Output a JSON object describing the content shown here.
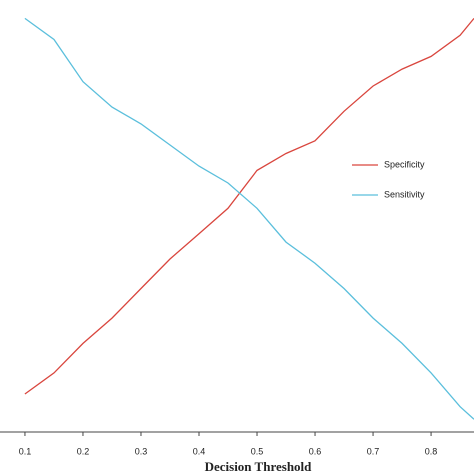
{
  "chart_data": {
    "type": "line",
    "x_label": "Decision Threshold",
    "x": [
      0.1,
      0.15,
      0.2,
      0.25,
      0.3,
      0.35,
      0.4,
      0.45,
      0.5,
      0.55,
      0.6,
      0.65,
      0.7,
      0.75,
      0.8,
      0.85,
      0.874
    ],
    "series": [
      {
        "name": "Specificity",
        "color": "#d9463e",
        "values": [
          0.09,
          0.14,
          0.21,
          0.27,
          0.34,
          0.41,
          0.47,
          0.53,
          0.62,
          0.66,
          0.69,
          0.76,
          0.82,
          0.86,
          0.89,
          0.94,
          0.98
        ]
      },
      {
        "name": "Sensitivity",
        "color": "#5bbfdc",
        "values": [
          0.98,
          0.93,
          0.83,
          0.77,
          0.73,
          0.68,
          0.63,
          0.59,
          0.53,
          0.45,
          0.4,
          0.34,
          0.27,
          0.21,
          0.14,
          0.06,
          0.03
        ]
      }
    ],
    "xlim": [
      0.057,
      0.874
    ],
    "ylim": [
      0,
      1
    ],
    "xticks": [
      0.1,
      0.2,
      0.3,
      0.4,
      0.5,
      0.6,
      0.7,
      0.8
    ],
    "legend": "right"
  }
}
